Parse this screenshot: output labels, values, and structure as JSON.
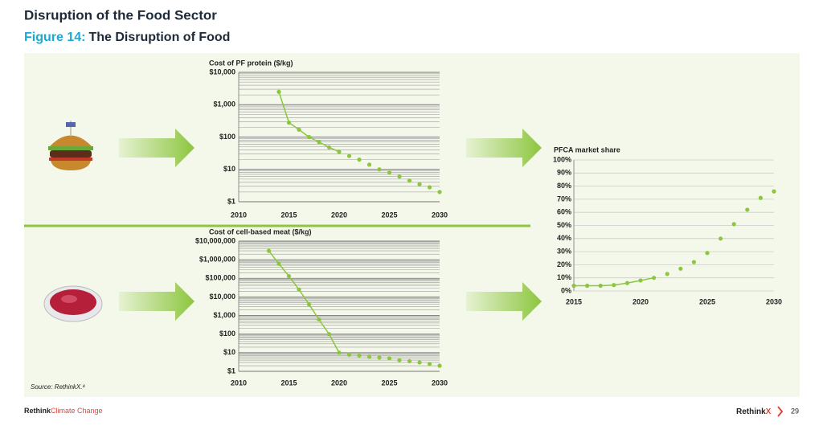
{
  "header": {
    "title": "Disruption of the Food Sector",
    "figure_label": "Figure 14:",
    "figure_title": "The Disruption of Food"
  },
  "source": "Source: RethinkX.⁸",
  "footer": {
    "brand": "Rethink",
    "brand_sub": "Climate Change",
    "logo_a": "Rethink",
    "logo_b": "X",
    "page": "29"
  },
  "chart_data": [
    {
      "type": "line",
      "title": "Cost of PF protein ($/kg)",
      "log_scale": true,
      "grid": true,
      "x": [
        2014,
        2015,
        2016,
        2017,
        2018,
        2019,
        2020,
        2021,
        2022,
        2023,
        2024,
        2025,
        2026,
        2027,
        2028,
        2029,
        2030
      ],
      "series": [
        {
          "color": "#8cc63f",
          "line": true,
          "values": [
            2500,
            280,
            170,
            100,
            70,
            48,
            35,
            null,
            null,
            null,
            null,
            null,
            null,
            null,
            null,
            null,
            null
          ]
        },
        {
          "color": "#8cc63f",
          "line": false,
          "values": [
            null,
            null,
            null,
            null,
            null,
            null,
            null,
            26,
            20,
            14,
            10,
            8,
            6,
            4.5,
            3.5,
            2.8,
            2
          ]
        }
      ],
      "xlim": [
        2010,
        2030
      ],
      "xticks": [
        2010,
        2015,
        2020,
        2025,
        2030
      ],
      "ylim": [
        1,
        10000
      ],
      "yticks": [
        {
          "value": 1,
          "label": "$1"
        },
        {
          "value": 10,
          "label": "$10"
        },
        {
          "value": 100,
          "label": "$100"
        },
        {
          "value": 1000,
          "label": "$1,000"
        },
        {
          "value": 10000,
          "label": "$10,000"
        }
      ]
    },
    {
      "type": "line",
      "title": "Cost of cell-based meat ($/kg)",
      "log_scale": true,
      "grid": true,
      "x": [
        2013,
        2014,
        2015,
        2016,
        2017,
        2018,
        2019,
        2020,
        2021,
        2022,
        2023,
        2024,
        2025,
        2026,
        2027,
        2028,
        2029,
        2030
      ],
      "series": [
        {
          "color": "#8cc63f",
          "line": true,
          "values": [
            3000000,
            600000,
            130000,
            25000,
            4000,
            600,
            100,
            10,
            null,
            null,
            null,
            null,
            null,
            null,
            null,
            null,
            null,
            null
          ]
        },
        {
          "color": "#8cc63f",
          "line": false,
          "values": [
            null,
            null,
            null,
            null,
            null,
            null,
            null,
            null,
            8,
            7,
            6,
            5.5,
            5,
            4,
            3.5,
            3,
            2.5,
            2
          ]
        }
      ],
      "xlim": [
        2010,
        2030
      ],
      "xticks": [
        2010,
        2015,
        2020,
        2025,
        2030
      ],
      "ylim": [
        1,
        10000000
      ],
      "yticks": [
        {
          "value": 1,
          "label": "$1"
        },
        {
          "value": 10,
          "label": "$10"
        },
        {
          "value": 100,
          "label": "$100"
        },
        {
          "value": 1000,
          "label": "$1,000"
        },
        {
          "value": 10000,
          "label": "$10,000"
        },
        {
          "value": 100000,
          "label": "$100,000"
        },
        {
          "value": 1000000,
          "label": "$1,000,000"
        },
        {
          "value": 10000000,
          "label": "$10,000,000"
        }
      ]
    },
    {
      "type": "line",
      "title": "PFCA market share",
      "log_scale": false,
      "grid": true,
      "x": [
        2015,
        2016,
        2017,
        2018,
        2019,
        2020,
        2021,
        2022,
        2023,
        2024,
        2025,
        2026,
        2027,
        2028,
        2029,
        2030
      ],
      "series": [
        {
          "color": "#8cc63f",
          "line": true,
          "values": [
            4,
            4,
            4,
            4.5,
            6,
            8,
            10,
            null,
            null,
            null,
            null,
            null,
            null,
            null,
            null,
            null
          ]
        },
        {
          "color": "#8cc63f",
          "line": false,
          "values": [
            null,
            null,
            null,
            null,
            null,
            null,
            null,
            13,
            17,
            22,
            29,
            40,
            51,
            62,
            71,
            76
          ]
        }
      ],
      "xlim": [
        2015,
        2030
      ],
      "xticks": [
        2015,
        2020,
        2025,
        2030
      ],
      "ylim": [
        0,
        100
      ],
      "yticks": [
        {
          "value": 0,
          "label": "0%"
        },
        {
          "value": 10,
          "label": "10%"
        },
        {
          "value": 20,
          "label": "20%"
        },
        {
          "value": 30,
          "label": "30%"
        },
        {
          "value": 40,
          "label": "40%"
        },
        {
          "value": 50,
          "label": "50%"
        },
        {
          "value": 60,
          "label": "60%"
        },
        {
          "value": 70,
          "label": "70%"
        },
        {
          "value": 80,
          "label": "80%"
        },
        {
          "value": 90,
          "label": "90%"
        },
        {
          "value": 100,
          "label": "100%"
        }
      ]
    }
  ]
}
